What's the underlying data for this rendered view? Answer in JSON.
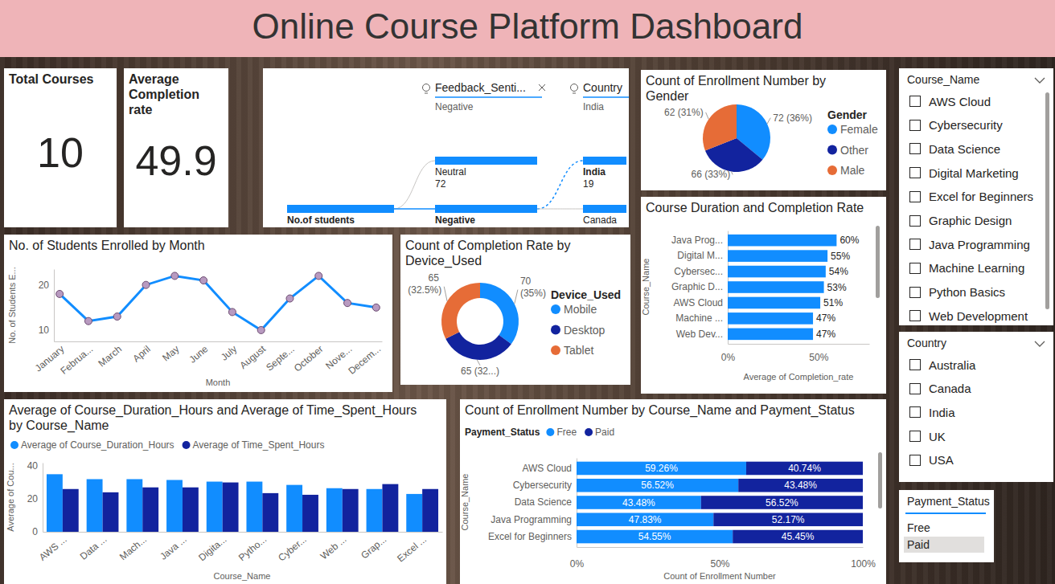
{
  "dashboard": {
    "title": "Online Course Platform Dashboard",
    "cards": [
      {
        "label": "Total Courses",
        "value": 10
      },
      {
        "label": "Average Completion rate",
        "value": 49.9
      }
    ],
    "decomposition_tree": {
      "levels": [
        {
          "nodes": [
            {
              "label": "No.of students"
            }
          ]
        },
        {
          "header": "Feedback_Senti...",
          "filter": "Negative",
          "nodes": [
            {
              "label": "Neutral",
              "value": 72
            },
            {
              "label": "Negative"
            }
          ]
        },
        {
          "header": "Country",
          "filter": "India",
          "nodes": [
            {
              "label": "India",
              "value": 19
            },
            {
              "label": "Canada"
            }
          ]
        }
      ]
    },
    "slicers": [
      {
        "title": "Course_Name",
        "items": [
          "AWS Cloud",
          "Cybersecurity",
          "Data Science",
          "Digital Marketing",
          "Excel for Beginners",
          "Graphic Design",
          "Java Programming",
          "Machine Learning",
          "Python Basics",
          "Web Development"
        ]
      },
      {
        "title": "Country",
        "items": [
          "Australia",
          "Canada",
          "India",
          "UK",
          "USA"
        ]
      },
      {
        "title": "Payment_Status",
        "items": [
          "Free",
          "Paid"
        ],
        "selected": "Paid"
      }
    ]
  },
  "chart_data": [
    {
      "type": "line",
      "title": "No. of Students Enrolled by Month",
      "x_label": "Month",
      "y_label": "No. of Students E...",
      "categories": [
        "January",
        "Februa...",
        "March",
        "April",
        "May",
        "June",
        "July",
        "August",
        "Septe...",
        "October",
        "Nove...",
        "Decem..."
      ],
      "values": [
        18,
        12,
        13,
        20,
        22,
        21,
        14,
        10,
        17,
        22,
        16,
        15
      ],
      "ylim": [
        7.5,
        23.5
      ],
      "yticks": [
        10,
        20
      ],
      "color": "#118dff",
      "marker": "circle"
    },
    {
      "type": "donut",
      "title": "Count of Completion Rate by Device_Used",
      "legend_title": "Device_Used",
      "categories": [
        "Mobile",
        "Desktop",
        "Tablet"
      ],
      "values": [
        70,
        65,
        65
      ],
      "value_labels": [
        "70 (35%)",
        "65 (32...)",
        "65 (32.5%)"
      ],
      "colors": [
        "#118dff",
        "#12239e",
        "#e66c37"
      ],
      "data_labels": true,
      "legend": "right"
    },
    {
      "type": "pie",
      "title": "Count of Enrollment Number by Gender",
      "legend_title": "Gender",
      "categories": [
        "Female",
        "Other",
        "Male"
      ],
      "values": [
        72,
        66,
        62
      ],
      "value_labels": [
        "72 (36%)",
        "66 (33%)",
        "62 (31%)"
      ],
      "colors": [
        "#118dff",
        "#12239e",
        "#e66c37"
      ],
      "data_labels": true,
      "legend": "right"
    },
    {
      "type": "bar",
      "orientation": "horizontal",
      "title": "Course Duration and Completion Rate",
      "x_label": "Average of Completion_rate",
      "y_label": "Course_Name",
      "categories": [
        "Java Prog...",
        "Digital M...",
        "Cybersec...",
        "Graphic D...",
        "AWS Cloud",
        "Machine ...",
        "Web Dev..."
      ],
      "values": [
        60,
        55,
        54,
        53,
        51,
        47,
        47
      ],
      "value_labels": [
        "60%",
        "55%",
        "54%",
        "53%",
        "51%",
        "47%",
        "47%"
      ],
      "xlim": [
        0,
        78
      ],
      "xticks": [
        {
          "value": 0,
          "label": "0%"
        },
        {
          "value": 50,
          "label": "50%"
        }
      ],
      "color": "#118dff",
      "data_labels": true
    },
    {
      "type": "bar",
      "title": "Average of Course_Duration_Hours and Average of Time_Spent_Hours by Course_Name",
      "x_label": "Course_Name",
      "y_label": "Average of Cou...",
      "categories": [
        "AWS ...",
        "Data ...",
        "Mach...",
        "Java ...",
        "Digita...",
        "Pytho...",
        "Cyber...",
        "Web ...",
        "Grap...",
        "Excel ..."
      ],
      "series": [
        {
          "name": "Average of Course_Duration_Hours",
          "color": "#118dff",
          "values": [
            35,
            32,
            32,
            31.5,
            30.5,
            30.5,
            28.5,
            26.5,
            26,
            23
          ]
        },
        {
          "name": "Average of Time_Spent_Hours",
          "color": "#12239e",
          "values": [
            26,
            24,
            27,
            27,
            30,
            23.5,
            22.5,
            26,
            29,
            26
          ]
        }
      ],
      "ylim": [
        0,
        42
      ],
      "yticks": [
        0,
        20,
        40
      ],
      "legend": "top"
    },
    {
      "type": "bar",
      "orientation": "horizontal",
      "stacked": true,
      "title": "Count of Enrollment Number by Course_Name and Payment_Status",
      "legend_title": "Payment_Status",
      "x_label": "Count of Enrollment Number",
      "y_label": "Course_Name",
      "categories": [
        "AWS Cloud",
        "Cybersecurity",
        "Data Science",
        "Java Programming",
        "Excel for Beginners"
      ],
      "series": [
        {
          "name": "Free",
          "color": "#118dff",
          "values": [
            59.26,
            56.52,
            43.48,
            47.83,
            54.55
          ],
          "value_labels": [
            "59.26%",
            "56.52%",
            "43.48%",
            "47.83%",
            "54.55%"
          ]
        },
        {
          "name": "Paid",
          "color": "#12239e",
          "values": [
            40.74,
            43.48,
            56.52,
            52.17,
            45.45
          ],
          "value_labels": [
            "40.74%",
            "43.48%",
            "56.52%",
            "52.17%",
            "45.45%"
          ]
        }
      ],
      "xlim": [
        0,
        100
      ],
      "xticks": [
        {
          "value": 0,
          "label": "0%"
        },
        {
          "value": 50,
          "label": "50%"
        },
        {
          "value": 100,
          "label": "100%"
        }
      ],
      "legend": "top",
      "data_labels": true
    }
  ]
}
